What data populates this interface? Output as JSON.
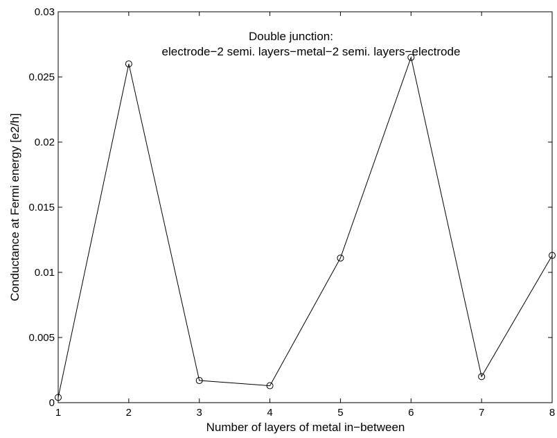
{
  "chart_data": {
    "type": "line",
    "x": [
      1,
      2,
      3,
      4,
      5,
      6,
      7,
      8
    ],
    "series": [
      {
        "values": [
          0.0004,
          0.026,
          0.0017,
          0.0013,
          0.0111,
          0.0265,
          0.002,
          0.0113
        ],
        "marker": "circle",
        "color": "#000000"
      }
    ],
    "title": "",
    "xlabel": "Number of layers of metal in−between",
    "ylabel": "Conductance at Fermi energy [e2/h]",
    "xlim": [
      1,
      8
    ],
    "ylim": [
      0,
      0.03
    ],
    "xticks": [
      1,
      2,
      3,
      4,
      5,
      6,
      7,
      8
    ],
    "xtick_labels": [
      "1",
      "2",
      "3",
      "4",
      "5",
      "6",
      "7",
      "8"
    ],
    "yticks": [
      0,
      0.005,
      0.01,
      0.015,
      0.02,
      0.025,
      0.03
    ],
    "ytick_labels": [
      "0",
      "0.005",
      "0.01",
      "0.015",
      "0.02",
      "0.025",
      "0.03"
    ],
    "grid": false,
    "annotations": [
      "Double junction:",
      "electrode−2 semi. layers−metal−2 semi. layers−electrode"
    ]
  }
}
